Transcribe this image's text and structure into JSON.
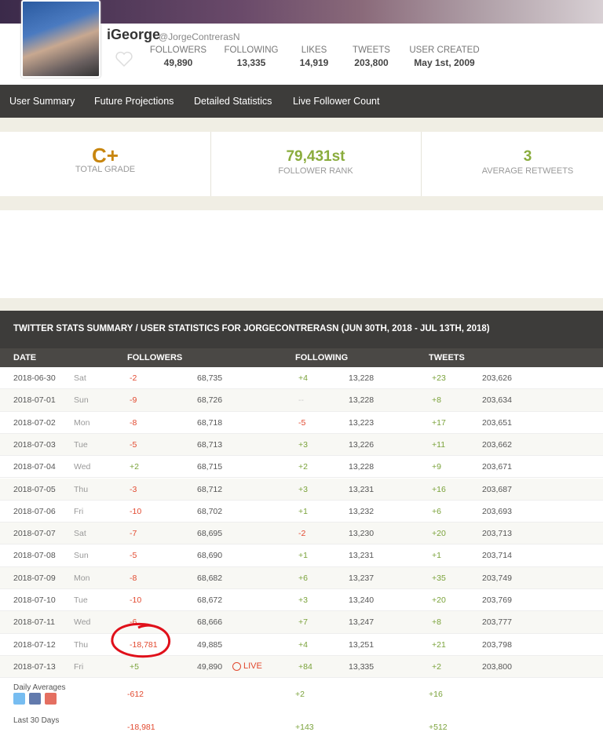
{
  "profile": {
    "name": "iGeorge",
    "handle": "@JorgeContrerasN",
    "stats": [
      {
        "label": "FOLLOWERS",
        "value": "49,890"
      },
      {
        "label": "FOLLOWING",
        "value": "13,335"
      },
      {
        "label": "LIKES",
        "value": "14,919"
      },
      {
        "label": "TWEETS",
        "value": "203,800"
      },
      {
        "label": "USER CREATED",
        "value": "May 1st, 2009"
      }
    ]
  },
  "nav": [
    "User Summary",
    "Future Projections",
    "Detailed Statistics",
    "Live Follower Count"
  ],
  "grades": [
    {
      "value": "C+",
      "label": "TOTAL GRADE"
    },
    {
      "value": "79,431st",
      "label": "FOLLOWER RANK"
    },
    {
      "value": "3",
      "label": "AVERAGE RETWEETS"
    }
  ],
  "table": {
    "title": "TWITTER STATS SUMMARY / USER STATISTICS FOR JORGECONTRERASN (JUN 30TH, 2018 - JUL 13TH, 2018)",
    "headers": [
      "DATE",
      "FOLLOWERS",
      "FOLLOWING",
      "TWEETS"
    ],
    "rows": [
      [
        "2018-06-30",
        "Sat",
        "-2",
        "68,735",
        "+4",
        "13,228",
        "+23",
        "203,626"
      ],
      [
        "2018-07-01",
        "Sun",
        "-9",
        "68,726",
        "--",
        "13,228",
        "+8",
        "203,634"
      ],
      [
        "2018-07-02",
        "Mon",
        "-8",
        "68,718",
        "-5",
        "13,223",
        "+17",
        "203,651"
      ],
      [
        "2018-07-03",
        "Tue",
        "-5",
        "68,713",
        "+3",
        "13,226",
        "+11",
        "203,662"
      ],
      [
        "2018-07-04",
        "Wed",
        "+2",
        "68,715",
        "+2",
        "13,228",
        "+9",
        "203,671"
      ],
      [
        "2018-07-05",
        "Thu",
        "-3",
        "68,712",
        "+3",
        "13,231",
        "+16",
        "203,687"
      ],
      [
        "2018-07-06",
        "Fri",
        "-10",
        "68,702",
        "+1",
        "13,232",
        "+6",
        "203,693"
      ],
      [
        "2018-07-07",
        "Sat",
        "-7",
        "68,695",
        "-2",
        "13,230",
        "+20",
        "203,713"
      ],
      [
        "2018-07-08",
        "Sun",
        "-5",
        "68,690",
        "+1",
        "13,231",
        "+1",
        "203,714"
      ],
      [
        "2018-07-09",
        "Mon",
        "-8",
        "68,682",
        "+6",
        "13,237",
        "+35",
        "203,749"
      ],
      [
        "2018-07-10",
        "Tue",
        "-10",
        "68,672",
        "+3",
        "13,240",
        "+20",
        "203,769"
      ],
      [
        "2018-07-11",
        "Wed",
        "-6",
        "68,666",
        "+7",
        "13,247",
        "+8",
        "203,777"
      ],
      [
        "2018-07-12",
        "Thu",
        "-18,781",
        "49,885",
        "+4",
        "13,251",
        "+21",
        "203,798"
      ],
      [
        "2018-07-13",
        "Fri",
        "+5",
        "49,890",
        "+84",
        "13,335",
        "+2",
        "203,800"
      ]
    ],
    "live_label": "LIVE",
    "summaries": [
      {
        "label": "Daily Averages",
        "values": [
          "-612",
          "+2",
          "+16"
        ]
      },
      {
        "label": "Last 30 Days",
        "values": [
          "-18,981",
          "+143",
          "+512"
        ]
      }
    ]
  }
}
